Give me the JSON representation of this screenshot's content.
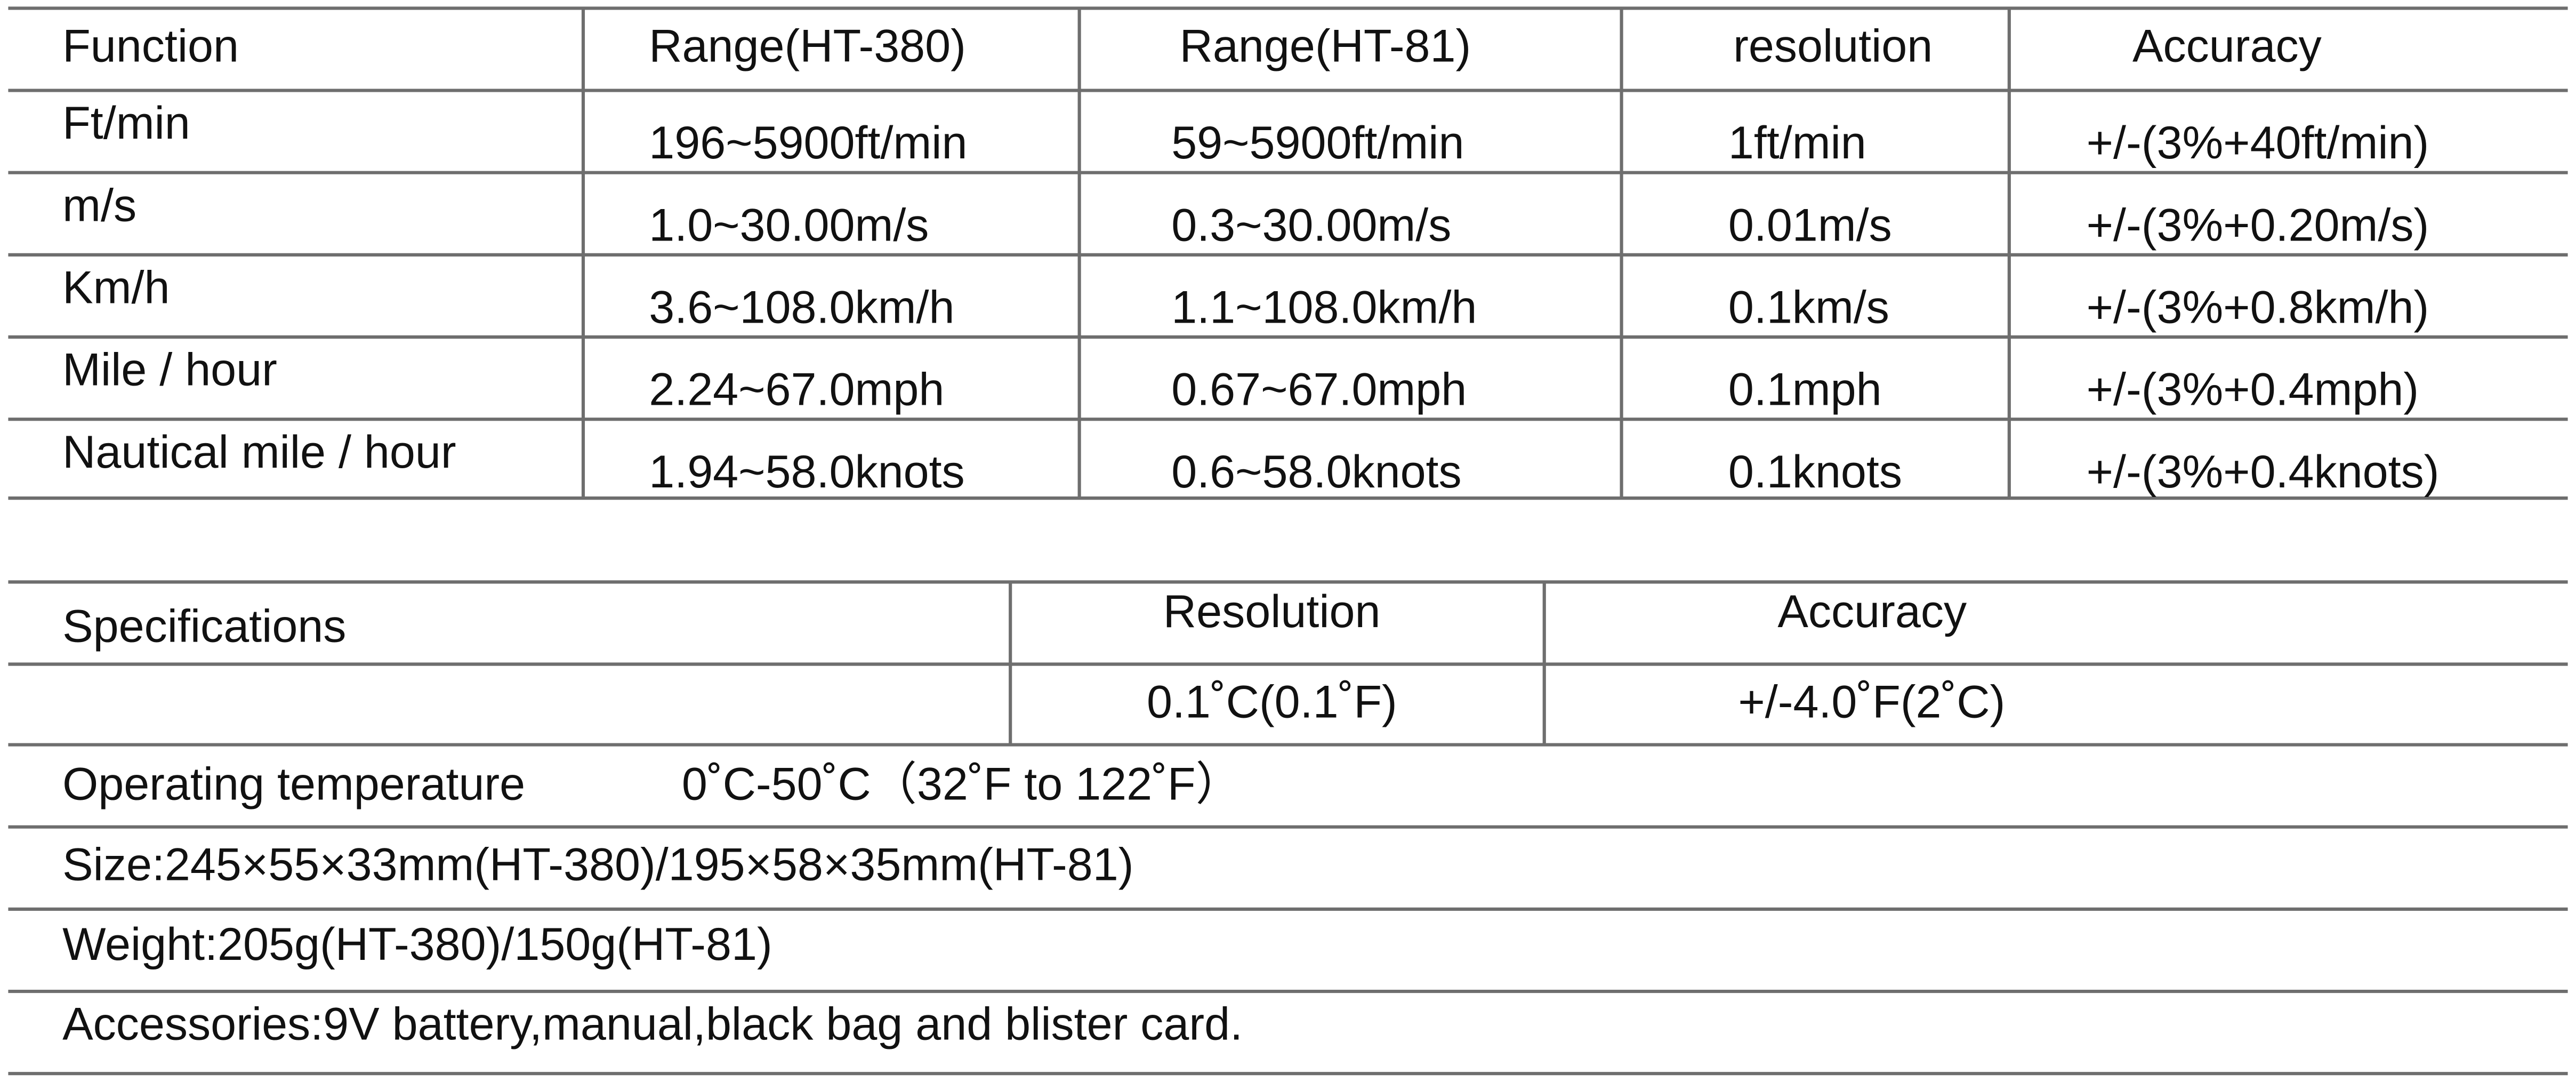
{
  "table1": {
    "header": [
      "Function",
      "Range(HT-380)",
      "Range(HT-81)",
      "resolution",
      "Accuracy"
    ],
    "rows": [
      [
        "Ft/min",
        "196~5900ft/min",
        "59~5900ft/min",
        "1ft/min",
        "+/-(3%+40ft/min)"
      ],
      [
        "m/s",
        "1.0~30.00m/s",
        "0.3~30.00m/s",
        "0.01m/s",
        "+/-(3%+0.20m/s)"
      ],
      [
        "Km/h",
        "3.6~108.0km/h",
        "1.1~108.0km/h",
        "0.1km/s",
        "+/-(3%+0.8km/h)"
      ],
      [
        "Mile / hour",
        "2.24~67.0mph",
        "0.67~67.0mph",
        "0.1mph",
        "+/-(3%+0.4mph)"
      ],
      [
        "Nautical mile / hour",
        "1.94~58.0knots",
        "0.6~58.0knots",
        "0.1knots",
        "+/-(3%+0.4knots)"
      ]
    ]
  },
  "table2": {
    "header": [
      "Specifications",
      "Resolution",
      "Accuracy"
    ],
    "resolution": "0.1˚C(0.1˚F)",
    "accuracy": "+/-4.0˚F(2˚C)",
    "operating_label": "Operating temperature",
    "operating_value": "0˚C-50˚C（32˚F  to 122˚F）",
    "notes": [
      "Size:245×55×33mm(HT-380)/195×58×35mm(HT-81)",
      "Weight:205g(HT-380)/150g(HT-81)",
      "Accessories:9V battery,manual,black bag and blister card."
    ]
  }
}
